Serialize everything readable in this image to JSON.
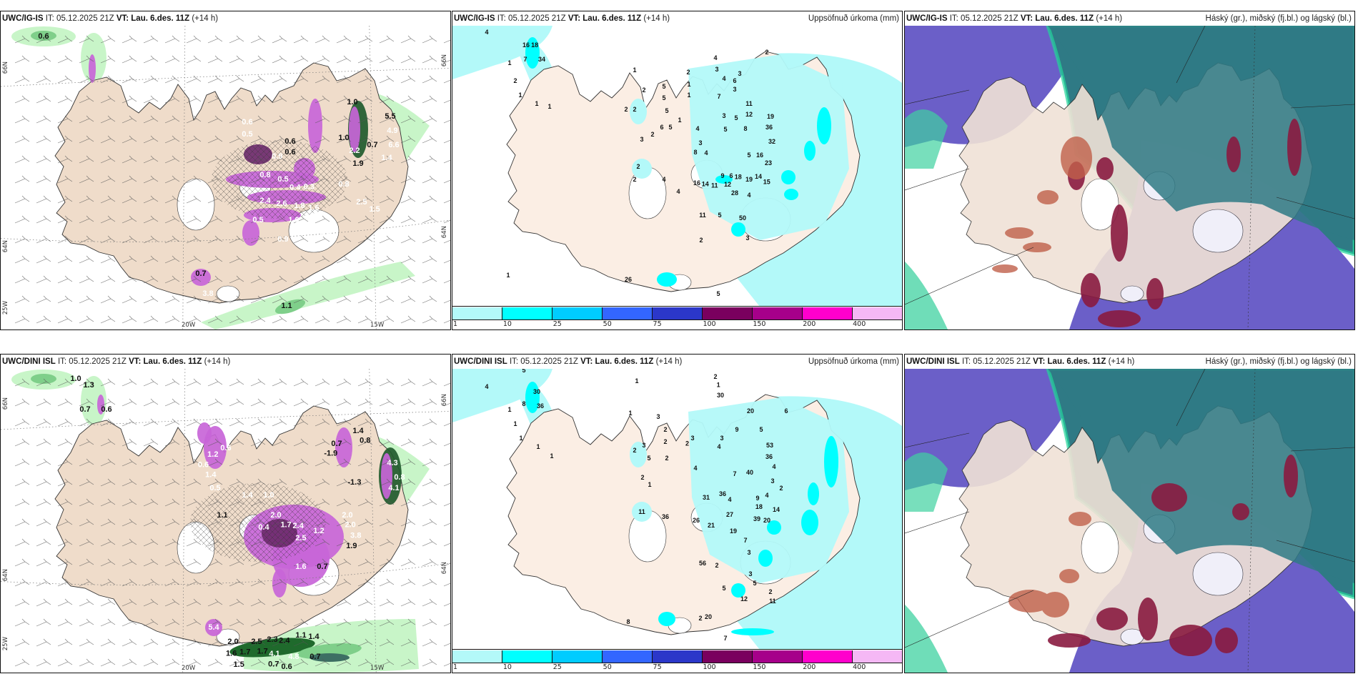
{
  "panels": [
    {
      "id": "igis-precip-wind",
      "model": "UWC/IG-IS",
      "it_label": "IT:",
      "it_value": "05.12.2025 21Z",
      "vt_label": "VT:",
      "vt_value": "Lau. 6.des. 11Z",
      "lead": "(+14 h)",
      "axis_labels": {
        "lat_left": [
          "66N",
          "64N",
          "25W"
        ],
        "lat_right": [
          "66N",
          "64N"
        ],
        "lon_bottom": [
          "20W",
          "15W"
        ]
      },
      "values": [
        {
          "t": "0.6",
          "c": "b"
        },
        {
          "t": "1.0",
          "c": "b"
        },
        {
          "t": "0.6",
          "c": "b"
        },
        {
          "t": "0.6",
          "c": "b"
        },
        {
          "t": "1.0",
          "c": "b"
        },
        {
          "t": "0.6",
          "c": "w"
        },
        {
          "t": "0.5",
          "c": "w"
        },
        {
          "t": "0.9",
          "c": "w"
        },
        {
          "t": "0.8",
          "c": "w"
        },
        {
          "t": "0.5",
          "c": "w"
        },
        {
          "t": "0.4",
          "c": "w"
        },
        {
          "t": "0.3",
          "c": "w"
        },
        {
          "t": "2.4",
          "c": "w"
        },
        {
          "t": "2.6",
          "c": "w"
        },
        {
          "t": "1.8",
          "c": "w"
        },
        {
          "t": "1.6",
          "c": "w"
        },
        {
          "t": "0.5",
          "c": "w"
        },
        {
          "t": "1.0",
          "c": "w"
        },
        {
          "t": "0.9",
          "c": "w"
        },
        {
          "t": "1.8",
          "c": "w"
        },
        {
          "t": "0.8",
          "c": "w"
        },
        {
          "t": "2.2",
          "c": "w"
        },
        {
          "t": "2.5",
          "c": "w"
        },
        {
          "t": "1.5",
          "c": "w"
        },
        {
          "t": "4.9",
          "c": "w"
        },
        {
          "t": "6.6",
          "c": "w"
        },
        {
          "t": "5.5",
          "c": "b"
        },
        {
          "t": "0.7",
          "c": "b"
        },
        {
          "t": "3.8",
          "c": "w"
        },
        {
          "t": "0.7",
          "c": "b"
        },
        {
          "t": "1.1",
          "c": "b"
        },
        {
          "t": "1.9",
          "c": "b"
        },
        {
          "t": "1.4",
          "c": "w"
        }
      ]
    },
    {
      "id": "igis-accum",
      "model": "UWC/IG-IS",
      "it_label": "IT:",
      "it_value": "05.12.2025 21Z",
      "vt_label": "VT:",
      "vt_value": "Lau. 6.des. 11Z",
      "lead": "(+14 h)",
      "field_title": "Uppsöfnuð úrkoma (mm)",
      "legend": {
        "ticks": [
          "1",
          "10",
          "25",
          "50",
          "75",
          "100",
          "150",
          "200",
          "400"
        ],
        "colors": [
          "#b3f9f9",
          "#00ffff",
          "#00ccff",
          "#3366ff",
          "#2b37c9",
          "#7a005e",
          "#a6008a",
          "#ff00cc",
          "#f5b8f5"
        ]
      },
      "values": [
        "4",
        "16",
        "18",
        "7",
        "34",
        "1",
        "2",
        "1",
        "1",
        "1",
        "1",
        "2",
        "2",
        "2",
        "5",
        "5",
        "5",
        "6",
        "5",
        "2",
        "3",
        "2",
        "1",
        "1",
        "4",
        "3",
        "4",
        "6",
        "3",
        "7",
        "3",
        "11",
        "12",
        "3",
        "5",
        "19",
        "36",
        "8",
        "5",
        "4",
        "32",
        "3",
        "8",
        "4",
        "5",
        "16",
        "23",
        "2",
        "2",
        "4",
        "9",
        "6",
        "18",
        "19",
        "14",
        "15",
        "16",
        "14",
        "11",
        "12",
        "28",
        "4",
        "4",
        "11",
        "5",
        "50",
        "2",
        "3",
        "26",
        "1",
        "5",
        "1",
        "2"
      ]
    },
    {
      "id": "igis-clouds",
      "model": "UWC/IG-IS",
      "it_label": "IT:",
      "it_value": "05.12.2025 21Z",
      "vt_label": "VT:",
      "vt_value": "Lau. 6.des. 11Z",
      "lead": "(+14 h)",
      "field_title": "Háský (gr.), miðský (fj.bl.) og lágský (bl.)"
    },
    {
      "id": "dini-precip-wind",
      "model": "UWC/DINI ISL",
      "it_label": "IT:",
      "it_value": "05.12.2025 21Z",
      "vt_label": "VT:",
      "vt_value": "Lau. 6.des. 11Z",
      "lead": "(+14 h)",
      "axis_labels": {
        "lat_left": [
          "66N",
          "64N",
          "25W"
        ],
        "lat_right": [
          "66N",
          "64N"
        ],
        "lon_bottom": [
          "20W",
          "15W"
        ]
      },
      "values": [
        {
          "t": "1.0",
          "c": "b"
        },
        {
          "t": "1.3",
          "c": "b"
        },
        {
          "t": "0.7",
          "c": "b"
        },
        {
          "t": "0.6",
          "c": "b"
        },
        {
          "t": "1.4",
          "c": "b"
        },
        {
          "t": "0.8",
          "c": "b"
        },
        {
          "t": "0.7",
          "c": "b"
        },
        {
          "t": "-1.9",
          "c": "b"
        },
        {
          "t": "1.1",
          "c": "b"
        },
        {
          "t": "-1.3",
          "c": "b"
        },
        {
          "t": "0.6",
          "c": "w"
        },
        {
          "t": "1.2",
          "c": "w"
        },
        {
          "t": "0.6",
          "c": "w"
        },
        {
          "t": "1.4",
          "c": "w"
        },
        {
          "t": "0.5",
          "c": "w"
        },
        {
          "t": "1.4",
          "c": "w"
        },
        {
          "t": "1.0",
          "c": "w"
        },
        {
          "t": "2.0",
          "c": "w"
        },
        {
          "t": "1.7",
          "c": "w"
        },
        {
          "t": "2.4",
          "c": "w"
        },
        {
          "t": "2.5",
          "c": "w"
        },
        {
          "t": "1.2",
          "c": "w"
        },
        {
          "t": "2.0",
          "c": "w"
        },
        {
          "t": "2.0",
          "c": "w"
        },
        {
          "t": "3.8",
          "c": "w"
        },
        {
          "t": "1.6",
          "c": "w"
        },
        {
          "t": "0.4",
          "c": "w"
        },
        {
          "t": "4.3",
          "c": "w"
        },
        {
          "t": "4.1",
          "c": "w"
        },
        {
          "t": "0.8",
          "c": "w"
        },
        {
          "t": "0.7",
          "c": "b"
        },
        {
          "t": "1.9",
          "c": "b"
        },
        {
          "t": "5.4",
          "c": "w"
        },
        {
          "t": "2.0",
          "c": "b"
        },
        {
          "t": "2.5",
          "c": "b"
        },
        {
          "t": "2.3",
          "c": "b"
        },
        {
          "t": "2.4",
          "c": "b"
        },
        {
          "t": "1.7",
          "c": "b"
        },
        {
          "t": "1.1",
          "c": "b"
        },
        {
          "t": "1.4",
          "c": "b"
        },
        {
          "t": "1.6",
          "c": "b"
        },
        {
          "t": "1.7",
          "c": "b"
        },
        {
          "t": "1.5",
          "c": "b"
        },
        {
          "t": "4.1",
          "c": "w"
        },
        {
          "t": "4.8",
          "c": "w"
        },
        {
          "t": "0.7",
          "c": "b"
        },
        {
          "t": "0.7",
          "c": "b"
        },
        {
          "t": "0.6",
          "c": "b"
        }
      ]
    },
    {
      "id": "dini-accum",
      "model": "UWC/DINI ISL",
      "it_label": "IT:",
      "it_value": "05.12.2025 21Z",
      "vt_label": "VT:",
      "vt_value": "Lau. 6.des. 11Z",
      "lead": "(+14 h)",
      "field_title": "Uppsöfnuð úrkoma (mm)",
      "legend": {
        "ticks": [
          "1",
          "10",
          "25",
          "50",
          "75",
          "100",
          "150",
          "200",
          "400"
        ],
        "colors": [
          "#b3f9f9",
          "#00ffff",
          "#00ccff",
          "#3366ff",
          "#2b37c9",
          "#7a005e",
          "#a6008a",
          "#ff00cc",
          "#f5b8f5"
        ]
      },
      "values": [
        "5",
        "4",
        "1",
        "2",
        "30",
        "8",
        "36",
        "1",
        "1",
        "1",
        "1",
        "1",
        "1",
        "3",
        "3",
        "2",
        "2",
        "3",
        "2",
        "5",
        "2",
        "2",
        "1",
        "2",
        "4",
        "7",
        "3",
        "4",
        "5",
        "9",
        "20",
        "1",
        "30",
        "53",
        "6",
        "40",
        "36",
        "4",
        "3",
        "2",
        "9",
        "4",
        "31",
        "36",
        "4",
        "18",
        "14",
        "11",
        "36",
        "27",
        "26",
        "21",
        "39",
        "20",
        "19",
        "7",
        "3",
        "56",
        "2",
        "3",
        "5",
        "5",
        "2",
        "2",
        "20",
        "12",
        "11",
        "8",
        "7"
      ]
    },
    {
      "id": "dini-clouds",
      "model": "UWC/DINI ISL",
      "it_label": "IT:",
      "it_value": "05.12.2025 21Z",
      "vt_label": "VT:",
      "vt_value": "Lau. 6.des. 11Z",
      "lead": "(+14 h)",
      "field_title": "Háský (gr.), miðský (fj.bl.) og lágský (bl.)"
    }
  ],
  "colors": {
    "land": "#efdcca",
    "land_cloud": "#f0e2d6",
    "precip_light": "#c8f5c8",
    "precip_mid": "#7fcf8a",
    "precip_heavy": "#1f6a2c",
    "precip_purple": "#c865d8",
    "precip_purple_dark": "#6e2a6e",
    "accum_base": "#b3f9f9",
    "cloud_high": "#2f7a85",
    "cloud_high_edge": "#22d69a",
    "cloud_mid": "#6b5fc8",
    "cloud_low": "#8a1b40",
    "cloud_low_orange": "#c0604a"
  }
}
